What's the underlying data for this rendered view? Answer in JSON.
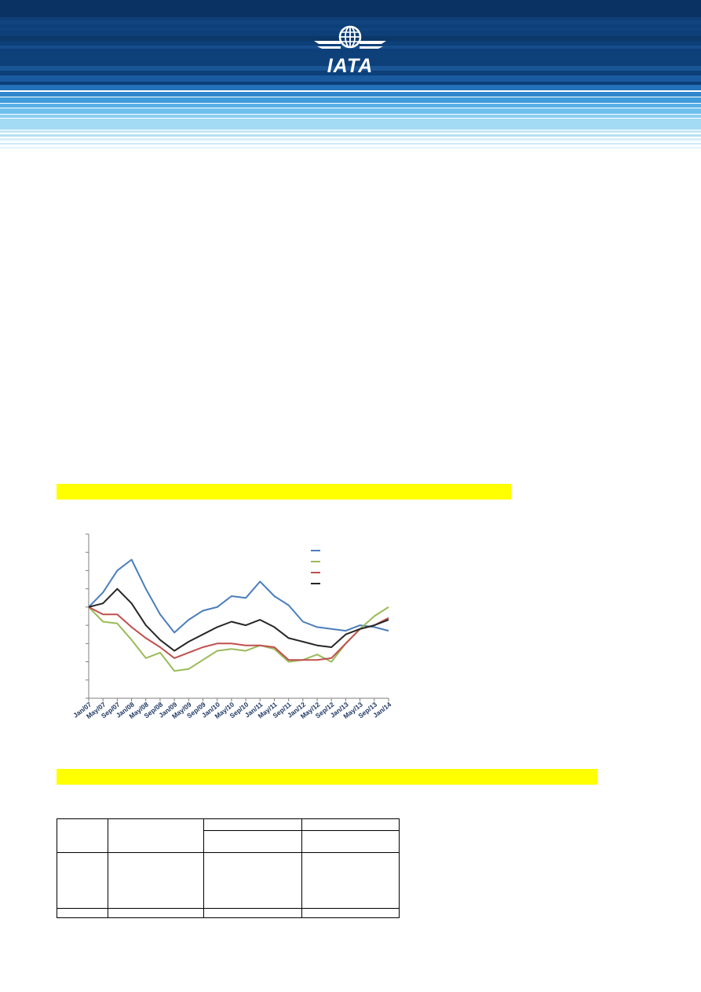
{
  "header": {
    "logo_icon": "iata-globe-wings-icon",
    "logo_text": "IATA",
    "colors": {
      "dark_navy": "#0b3566",
      "mid_blue": "#1b63a6",
      "light_blue": "#8fd1f3"
    }
  },
  "section1": {
    "highlight_color": "#ffff00"
  },
  "section2": {
    "highlight_color": "#ffff00"
  },
  "chart_data": {
    "type": "line",
    "title": "",
    "xlabel": "",
    "ylabel": "",
    "categories": [
      "Jan/07",
      "May/07",
      "Sep/07",
      "Jan/08",
      "May/08",
      "Sep/08",
      "Jan/09",
      "May/09",
      "Sep/09",
      "Jan/10",
      "May/10",
      "Sep/10",
      "Jan/11",
      "May/11",
      "Sep/11",
      "Jan/12",
      "May/12",
      "Sep/12",
      "Jan/13",
      "May/13",
      "Sep/13",
      "Jan/14"
    ],
    "series": [
      {
        "color": "#4a7ebb",
        "values": [
          100,
          108,
          120,
          126,
          110,
          96,
          86,
          93,
          98,
          100,
          106,
          105,
          114,
          106,
          101,
          92,
          89,
          88,
          87,
          90,
          89,
          87
        ]
      },
      {
        "color": "#9bbb59",
        "values": [
          100,
          92,
          91,
          82,
          72,
          75,
          65,
          66,
          71,
          76,
          77,
          76,
          79,
          77,
          70,
          71,
          74,
          70,
          80,
          88,
          95,
          100
        ]
      },
      {
        "color": "#c0504d",
        "values": [
          100,
          96,
          96,
          89,
          83,
          78,
          72,
          75,
          78,
          80,
          80,
          79,
          79,
          78,
          71,
          71,
          71,
          72,
          80,
          88,
          90,
          94
        ]
      },
      {
        "color": "#262626",
        "values": [
          100,
          102,
          110,
          102,
          90,
          82,
          76,
          81,
          85,
          89,
          92,
          90,
          93,
          89,
          83,
          81,
          79,
          78,
          85,
          88,
          90,
          93
        ]
      }
    ],
    "ylim": [
      50,
      140
    ],
    "grid": false,
    "legend_position": "top-right"
  }
}
